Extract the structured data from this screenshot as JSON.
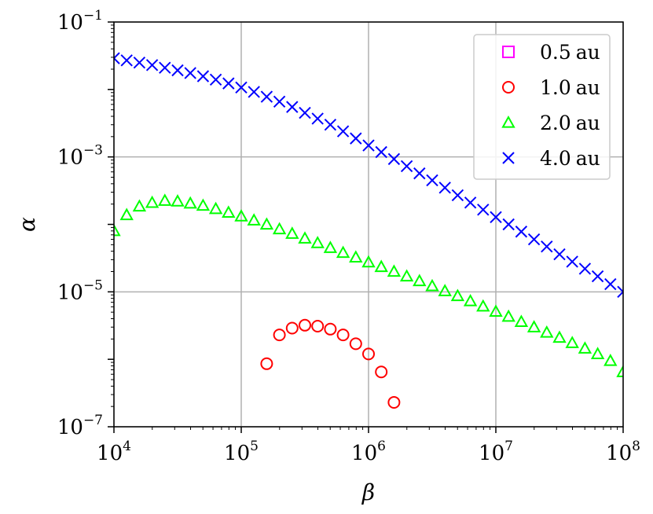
{
  "chart_data": {
    "type": "scatter",
    "title": "",
    "xlabel": "β",
    "ylabel": "α",
    "xscale": "log",
    "yscale": "log",
    "xlim": [
      10000,
      100000000
    ],
    "ylim": [
      1e-07,
      0.1
    ],
    "grid": true,
    "legend_position": "top-right",
    "x_ticks": [
      {
        "value": 10000,
        "base": "10",
        "exp": "4"
      },
      {
        "value": 100000,
        "base": "10",
        "exp": "5"
      },
      {
        "value": 1000000,
        "base": "10",
        "exp": "6"
      },
      {
        "value": 10000000,
        "base": "10",
        "exp": "7"
      },
      {
        "value": 100000000,
        "base": "10",
        "exp": "8"
      }
    ],
    "y_ticks": [
      {
        "value": 1e-07,
        "base": "10",
        "exp": "−7"
      },
      {
        "value": 1e-05,
        "base": "10",
        "exp": "−5"
      },
      {
        "value": 0.001,
        "base": "10",
        "exp": "−3"
      },
      {
        "value": 0.1,
        "base": "10",
        "exp": "−1"
      }
    ],
    "series": [
      {
        "name": "0.5 au",
        "marker": "square",
        "color": "#ff00ff",
        "x": [],
        "y": []
      },
      {
        "name": "1.0 au",
        "marker": "circle",
        "color": "#ff0000",
        "x": [
          158489,
          199526,
          251189,
          316228,
          398107,
          501187,
          630957,
          794328,
          1000000,
          1258925,
          1584893
        ],
        "y": [
          8.6e-07,
          2.3e-06,
          2.9e-06,
          3.2e-06,
          3.1e-06,
          2.8e-06,
          2.3e-06,
          1.7e-06,
          1.2e-06,
          6.5e-07,
          2.3e-07
        ]
      },
      {
        "name": "2.0 au",
        "marker": "triangle",
        "color": "#00ff00",
        "x": [
          10000,
          12589,
          15849,
          19953,
          25119,
          31623,
          39811,
          50119,
          63096,
          79433,
          100000,
          125893,
          158489,
          199526,
          251189,
          316228,
          398107,
          501187,
          630957,
          794328,
          1000000,
          1258925,
          1584893,
          1995262,
          2511886,
          3162278,
          3981072,
          5011872,
          6309573,
          7943282,
          10000000,
          12589254,
          15848932,
          19952623,
          25118864,
          31622777,
          39810717,
          50118723,
          63095734,
          79432823,
          100000000
        ],
        "y": [
          8e-05,
          0.000138,
          0.000185,
          0.00021,
          0.000225,
          0.00022,
          0.000205,
          0.00019,
          0.00017,
          0.00015,
          0.000132,
          0.000115,
          0.0001,
          8.5e-05,
          7.3e-05,
          6.2e-05,
          5.3e-05,
          4.5e-05,
          3.8e-05,
          3.25e-05,
          2.75e-05,
          2.35e-05,
          2e-05,
          1.7e-05,
          1.45e-05,
          1.22e-05,
          1.03e-05,
          8.7e-06,
          7.3e-06,
          6.1e-06,
          5.1e-06,
          4.3e-06,
          3.6e-06,
          3e-06,
          2.5e-06,
          2.1e-06,
          1.75e-06,
          1.45e-06,
          1.2e-06,
          9.5e-07,
          6.5e-07
        ]
      },
      {
        "name": "4.0 au",
        "marker": "x",
        "color": "#0000ff",
        "x": [
          10000,
          12589,
          15849,
          19953,
          25119,
          31623,
          39811,
          50119,
          63096,
          79433,
          100000,
          125893,
          158489,
          199526,
          251189,
          316228,
          398107,
          501187,
          630957,
          794328,
          1000000,
          1258925,
          1584893,
          1995262,
          2511886,
          3162278,
          3981072,
          5011872,
          6309573,
          7943282,
          10000000,
          12589254,
          15848932,
          19952623,
          25118864,
          31622777,
          39810717,
          50118723,
          63095734,
          79432823,
          100000000
        ],
        "y": [
          0.029,
          0.027,
          0.025,
          0.023,
          0.021,
          0.0192,
          0.0175,
          0.0157,
          0.014,
          0.0123,
          0.0107,
          0.0092,
          0.0078,
          0.0066,
          0.0055,
          0.0045,
          0.0037,
          0.003,
          0.0024,
          0.00188,
          0.00148,
          0.00118,
          0.00093,
          0.00073,
          0.00057,
          0.00045,
          0.00035,
          0.00027,
          0.00021,
          0.000165,
          0.000128,
          0.0001,
          7.8e-05,
          6e-05,
          4.7e-05,
          3.6e-05,
          2.8e-05,
          2.2e-05,
          1.7e-05,
          1.3e-05,
          1e-05
        ]
      }
    ],
    "legend": [
      {
        "marker": "square",
        "color": "#ff00ff",
        "value": "0.5",
        "unit": "au"
      },
      {
        "marker": "circle",
        "color": "#ff0000",
        "value": "1.0",
        "unit": "au"
      },
      {
        "marker": "triangle",
        "color": "#00ff00",
        "value": "2.0",
        "unit": "au"
      },
      {
        "marker": "x",
        "color": "#0000ff",
        "value": "4.0",
        "unit": "au"
      }
    ]
  }
}
